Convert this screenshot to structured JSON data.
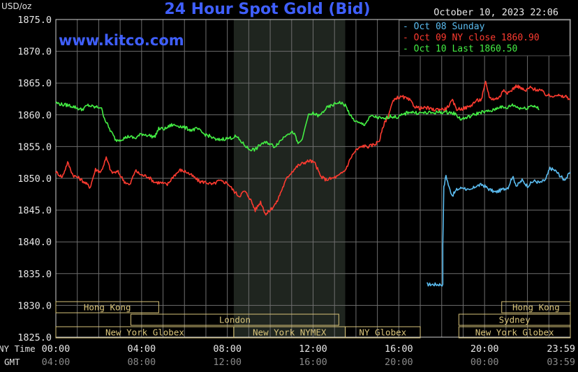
{
  "header": {
    "title": "24 Hour Spot Gold (Bid)",
    "unit": "USD/oz",
    "timestamp": "October 10, 2023 22:06",
    "website": "www.kitco.com"
  },
  "legend": [
    {
      "label": "Oct 08 Sunday",
      "color": "#5bbcf0"
    },
    {
      "label": "Oct 09 NY close 1860.90",
      "color": "#ff3b30"
    },
    {
      "label": "Oct 10 Last 1860.50",
      "color": "#44ee44"
    }
  ],
  "axis_rows": {
    "ny_label": "NY Time",
    "gmt_label": "GMT"
  },
  "sessions": [
    {
      "row": 0,
      "label": "Hong Kong",
      "start": 0,
      "end": 4.8
    },
    {
      "row": 0,
      "label": "Hong Kong",
      "start": 20.8,
      "end": 24
    },
    {
      "row": 1,
      "label": "London",
      "start": 3.5,
      "end": 13.2
    },
    {
      "row": 1,
      "label": "Sydney",
      "start": 18.8,
      "end": 24
    },
    {
      "row": 2,
      "label": "New York Globex",
      "start": 0,
      "end": 8.3
    },
    {
      "row": 2,
      "label": "New York NYMEX",
      "start": 8.3,
      "end": 13.5
    },
    {
      "row": 2,
      "label": "NY Globex",
      "start": 13.5,
      "end": 17
    },
    {
      "row": 2,
      "label": "New York Globex",
      "start": 18.8,
      "end": 24
    }
  ],
  "colors": {
    "background": "#000000",
    "plot_frame": "#cfcfcf",
    "grid": "#6e6e6e",
    "shaded": "#1f251f",
    "session_bar": "#d9c47a",
    "title": "#3f5fff",
    "website": "#3f5fff"
  },
  "chart_data": {
    "type": "line",
    "title": "24 Hour Spot Gold (Bid)",
    "ylabel": "USD/oz",
    "ylim": [
      1825,
      1875
    ],
    "xlim": [
      0,
      24
    ],
    "y_ticks": [
      "1875.0",
      "1870.0",
      "1865.0",
      "1860.0",
      "1855.0",
      "1850.0",
      "1845.0",
      "1840.0",
      "1835.0",
      "1830.0",
      "1825.0"
    ],
    "x_ticks_ny": [
      "00:00",
      "04:00",
      "08:00",
      "12:00",
      "16:00",
      "20:00",
      "23:59"
    ],
    "x_ticks_gmt": [
      "04:00",
      "08:00",
      "12:00",
      "16:00",
      "20:00",
      "00:00",
      "03:59"
    ],
    "x_tick_hours": [
      0,
      4,
      8,
      12,
      16,
      20,
      24
    ],
    "shaded_region": [
      8.3,
      13.5
    ],
    "grid": true,
    "legend_position": "top-right",
    "series": [
      {
        "name": "Oct 08 Sunday",
        "color": "#5bbcf0",
        "points": [
          [
            17.3,
            1833.3
          ],
          [
            18.05,
            1833.3
          ],
          [
            18.05,
            1839.5
          ],
          [
            18.1,
            1848.5
          ],
          [
            18.2,
            1850.5
          ],
          [
            18.35,
            1848.5
          ],
          [
            18.5,
            1847.3
          ],
          [
            18.7,
            1848.2
          ],
          [
            19.0,
            1848.6
          ],
          [
            19.3,
            1848.0
          ],
          [
            19.6,
            1848.8
          ],
          [
            19.9,
            1849.0
          ],
          [
            20.2,
            1848.3
          ],
          [
            20.5,
            1847.8
          ],
          [
            20.8,
            1848.2
          ],
          [
            21.1,
            1848.6
          ],
          [
            21.3,
            1850.3
          ],
          [
            21.5,
            1848.8
          ],
          [
            21.75,
            1849.7
          ],
          [
            22.0,
            1848.8
          ],
          [
            22.3,
            1849.6
          ],
          [
            22.6,
            1849.3
          ],
          [
            22.85,
            1849.8
          ],
          [
            23.05,
            1851.6
          ],
          [
            23.3,
            1851.2
          ],
          [
            23.5,
            1850.5
          ],
          [
            23.7,
            1849.8
          ],
          [
            23.85,
            1850.2
          ],
          [
            24.0,
            1851.0
          ]
        ]
      },
      {
        "name": "Oct 09 NY close 1860.90",
        "color": "#ff3b30",
        "points": [
          [
            0.0,
            1851.0
          ],
          [
            0.3,
            1850.2
          ],
          [
            0.55,
            1852.5
          ],
          [
            0.8,
            1850.5
          ],
          [
            1.1,
            1850.0
          ],
          [
            1.4,
            1849.2
          ],
          [
            1.6,
            1848.6
          ],
          [
            1.85,
            1851.4
          ],
          [
            2.1,
            1851.0
          ],
          [
            2.35,
            1853.2
          ],
          [
            2.6,
            1850.9
          ],
          [
            2.9,
            1851.0
          ],
          [
            3.2,
            1849.5
          ],
          [
            3.45,
            1848.9
          ],
          [
            3.7,
            1851.2
          ],
          [
            4.0,
            1850.5
          ],
          [
            4.3,
            1850.3
          ],
          [
            4.6,
            1849.4
          ],
          [
            4.9,
            1849.3
          ],
          [
            5.2,
            1849.0
          ],
          [
            5.5,
            1850.4
          ],
          [
            5.8,
            1851.3
          ],
          [
            6.1,
            1851.0
          ],
          [
            6.4,
            1850.3
          ],
          [
            6.7,
            1849.5
          ],
          [
            7.0,
            1849.4
          ],
          [
            7.3,
            1849.0
          ],
          [
            7.6,
            1849.6
          ],
          [
            8.0,
            1849.3
          ],
          [
            8.3,
            1848.0
          ],
          [
            8.55,
            1847.2
          ],
          [
            8.8,
            1848.0
          ],
          [
            9.05,
            1846.9
          ],
          [
            9.3,
            1845.0
          ],
          [
            9.55,
            1846.3
          ],
          [
            9.8,
            1844.3
          ],
          [
            10.05,
            1845.2
          ],
          [
            10.3,
            1846.2
          ],
          [
            10.55,
            1848.3
          ],
          [
            10.8,
            1850.2
          ],
          [
            11.05,
            1851.2
          ],
          [
            11.3,
            1852.0
          ],
          [
            11.6,
            1852.5
          ],
          [
            11.85,
            1852.8
          ],
          [
            12.1,
            1852.3
          ],
          [
            12.35,
            1850.3
          ],
          [
            12.6,
            1849.8
          ],
          [
            12.9,
            1850.0
          ],
          [
            13.2,
            1850.4
          ],
          [
            13.5,
            1851.3
          ],
          [
            13.8,
            1853.5
          ],
          [
            14.0,
            1854.4
          ],
          [
            14.3,
            1855.1
          ],
          [
            14.6,
            1855.0
          ],
          [
            14.9,
            1855.4
          ],
          [
            15.1,
            1856.0
          ],
          [
            15.3,
            1858.5
          ],
          [
            15.5,
            1859.8
          ],
          [
            15.7,
            1861.9
          ],
          [
            15.9,
            1862.7
          ],
          [
            16.2,
            1862.8
          ],
          [
            16.5,
            1862.3
          ],
          [
            16.75,
            1861.3
          ],
          [
            17.0,
            1861.0
          ],
          [
            17.3,
            1861.1
          ],
          [
            17.6,
            1860.8
          ],
          [
            17.9,
            1860.9
          ],
          [
            18.2,
            1860.9
          ],
          [
            18.5,
            1862.2
          ],
          [
            18.7,
            1860.9
          ],
          [
            19.0,
            1861.0
          ],
          [
            19.3,
            1861.3
          ],
          [
            19.6,
            1862.2
          ],
          [
            19.85,
            1862.4
          ],
          [
            20.05,
            1865.1
          ],
          [
            20.25,
            1862.6
          ],
          [
            20.5,
            1862.5
          ],
          [
            20.7,
            1862.8
          ],
          [
            20.9,
            1864.0
          ],
          [
            21.1,
            1863.4
          ],
          [
            21.3,
            1864.0
          ],
          [
            21.5,
            1864.6
          ],
          [
            21.7,
            1864.2
          ],
          [
            21.9,
            1863.7
          ],
          [
            22.1,
            1864.3
          ],
          [
            22.35,
            1864.0
          ],
          [
            22.6,
            1863.9
          ],
          [
            22.85,
            1863.2
          ],
          [
            23.1,
            1862.9
          ],
          [
            23.35,
            1863.2
          ],
          [
            23.6,
            1862.8
          ],
          [
            23.8,
            1862.9
          ],
          [
            24.0,
            1862.4
          ]
        ]
      },
      {
        "name": "Oct 10 Last 1860.50",
        "color": "#44ee44",
        "points": [
          [
            0.0,
            1861.9
          ],
          [
            0.3,
            1861.6
          ],
          [
            0.6,
            1861.5
          ],
          [
            0.9,
            1861.2
          ],
          [
            1.2,
            1860.8
          ],
          [
            1.5,
            1861.5
          ],
          [
            1.8,
            1861.2
          ],
          [
            2.1,
            1861.2
          ],
          [
            2.3,
            1859.2
          ],
          [
            2.5,
            1857.8
          ],
          [
            2.8,
            1856.0
          ],
          [
            3.1,
            1856.2
          ],
          [
            3.4,
            1856.6
          ],
          [
            3.7,
            1856.3
          ],
          [
            4.0,
            1857.0
          ],
          [
            4.3,
            1856.8
          ],
          [
            4.6,
            1856.5
          ],
          [
            4.8,
            1857.8
          ],
          [
            5.1,
            1857.8
          ],
          [
            5.4,
            1858.4
          ],
          [
            5.7,
            1858.3
          ],
          [
            6.0,
            1858.0
          ],
          [
            6.3,
            1857.6
          ],
          [
            6.6,
            1857.8
          ],
          [
            6.9,
            1857.0
          ],
          [
            7.2,
            1856.6
          ],
          [
            7.5,
            1856.0
          ],
          [
            7.8,
            1856.2
          ],
          [
            8.1,
            1856.3
          ],
          [
            8.4,
            1856.6
          ],
          [
            8.7,
            1855.6
          ],
          [
            9.0,
            1854.6
          ],
          [
            9.3,
            1854.5
          ],
          [
            9.6,
            1855.5
          ],
          [
            9.9,
            1855.6
          ],
          [
            10.2,
            1855.0
          ],
          [
            10.5,
            1856.0
          ],
          [
            10.8,
            1857.1
          ],
          [
            11.1,
            1857.2
          ],
          [
            11.3,
            1855.4
          ],
          [
            11.5,
            1856.2
          ],
          [
            11.75,
            1859.8
          ],
          [
            12.0,
            1860.2
          ],
          [
            12.3,
            1859.8
          ],
          [
            12.6,
            1861.0
          ],
          [
            12.9,
            1861.5
          ],
          [
            13.2,
            1862.0
          ],
          [
            13.5,
            1861.5
          ],
          [
            13.8,
            1859.5
          ],
          [
            14.1,
            1858.7
          ],
          [
            14.4,
            1858.5
          ],
          [
            14.7,
            1859.8
          ],
          [
            15.0,
            1859.6
          ],
          [
            15.3,
            1859.3
          ],
          [
            15.6,
            1859.8
          ],
          [
            15.9,
            1859.6
          ],
          [
            16.2,
            1860.0
          ],
          [
            16.5,
            1860.5
          ],
          [
            16.8,
            1860.3
          ],
          [
            17.1,
            1860.3
          ],
          [
            17.5,
            1860.3
          ],
          [
            17.9,
            1860.4
          ],
          [
            18.3,
            1860.4
          ],
          [
            18.6,
            1860.2
          ],
          [
            18.9,
            1859.3
          ],
          [
            19.2,
            1859.6
          ],
          [
            19.5,
            1860.0
          ],
          [
            19.8,
            1860.4
          ],
          [
            20.1,
            1860.5
          ],
          [
            20.4,
            1860.7
          ],
          [
            20.7,
            1861.3
          ],
          [
            21.0,
            1861.0
          ],
          [
            21.3,
            1861.6
          ],
          [
            21.6,
            1861.1
          ],
          [
            21.9,
            1861.0
          ],
          [
            22.2,
            1861.5
          ],
          [
            22.4,
            1861.3
          ],
          [
            22.55,
            1860.8
          ]
        ]
      }
    ]
  }
}
